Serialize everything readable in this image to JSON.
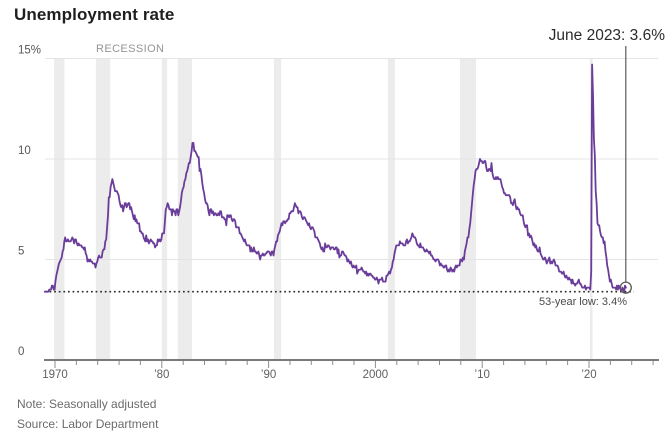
{
  "title": "Unemployment rate",
  "recession_label": "RECESSION",
  "annotations": {
    "latest": "June 2023: 3.6%",
    "low": "53-year low: 3.4%"
  },
  "note": "Note: Seasonally adjusted",
  "source": "Source: Labor Department",
  "colors": {
    "line": "#6a3d9a",
    "recession_band": "#ececec",
    "grid": "#e4e4e4",
    "axis": "#7a7a7a",
    "tick": "#8c8c8c",
    "tick_label": "#5f5f5f",
    "y_label": "#575757",
    "dotted_line": "#2a2a2a",
    "annotation_line": "#5a5a5a"
  },
  "chart_data": {
    "type": "line",
    "title": "Unemployment rate",
    "unit": "%",
    "frequency": "monthly",
    "start_year": 1969,
    "end_label": "June 2023",
    "ylim": [
      0,
      15
    ],
    "xlim": [
      1969,
      2026.5
    ],
    "grid": "horizontal",
    "y_ticks": [
      {
        "value": 15,
        "label": "15%"
      },
      {
        "value": 10,
        "label": "10"
      },
      {
        "value": 5,
        "label": "5"
      },
      {
        "value": 0,
        "label": "0"
      }
    ],
    "x_ticks": [
      {
        "year": 1970,
        "label": "1970"
      },
      {
        "year": 1980,
        "label": "’80"
      },
      {
        "year": 1990,
        "label": "’90"
      },
      {
        "year": 2000,
        "label": "2000"
      },
      {
        "year": 2010,
        "label": "’10"
      },
      {
        "year": 2020,
        "label": "’20"
      }
    ],
    "minor_tick_step_years": 2,
    "minor_tick_range": [
      1970,
      2026
    ],
    "recessions": [
      [
        1969.92,
        1970.88
      ],
      [
        1973.83,
        1975.17
      ],
      [
        1980.0,
        1980.5
      ],
      [
        1981.5,
        1982.83
      ],
      [
        1990.5,
        1991.17
      ],
      [
        2001.17,
        2001.83
      ],
      [
        2007.92,
        2009.42
      ],
      [
        2020.08,
        2020.33
      ]
    ],
    "low_line": {
      "value": 3.4,
      "label": "53-year low: 3.4%"
    },
    "latest_point": {
      "x": 2023.45,
      "value": 3.6,
      "label": "June 2023: 3.6%"
    },
    "values": [
      3.4,
      3.4,
      3.4,
      3.4,
      3.4,
      3.5,
      3.5,
      3.5,
      3.7,
      3.7,
      3.5,
      3.5,
      3.9,
      4.2,
      4.4,
      4.6,
      4.8,
      4.9,
      5.0,
      5.1,
      5.4,
      5.5,
      5.9,
      6.1,
      5.9,
      5.9,
      6.0,
      5.9,
      5.9,
      5.9,
      6.0,
      6.1,
      6.0,
      5.8,
      6.0,
      6.0,
      5.8,
      5.7,
      5.8,
      5.7,
      5.7,
      5.7,
      5.6,
      5.6,
      5.5,
      5.6,
      5.3,
      5.2,
      4.9,
      5.0,
      4.9,
      5.0,
      4.9,
      4.9,
      4.8,
      4.8,
      4.8,
      4.6,
      4.8,
      4.9,
      5.1,
      5.2,
      5.1,
      5.1,
      5.1,
      5.4,
      5.5,
      5.5,
      5.9,
      6.0,
      6.6,
      7.2,
      8.1,
      8.1,
      8.6,
      8.8,
      9.0,
      8.8,
      8.6,
      8.4,
      8.4,
      8.4,
      8.3,
      8.2,
      7.9,
      7.7,
      7.6,
      7.7,
      7.4,
      7.6,
      7.8,
      7.8,
      7.6,
      7.7,
      7.8,
      7.8,
      7.5,
      7.6,
      7.4,
      7.2,
      7.0,
      7.2,
      6.9,
      7.0,
      6.8,
      6.8,
      6.8,
      6.4,
      6.4,
      6.3,
      6.3,
      6.1,
      6.0,
      5.9,
      6.2,
      5.9,
      6.0,
      5.8,
      5.9,
      6.0,
      5.9,
      5.9,
      5.8,
      5.8,
      5.6,
      5.7,
      5.7,
      6.0,
      5.9,
      6.0,
      5.9,
      6.0,
      6.3,
      6.3,
      6.3,
      6.9,
      7.5,
      7.6,
      7.8,
      7.7,
      7.5,
      7.5,
      7.5,
      7.2,
      7.5,
      7.4,
      7.4,
      7.2,
      7.5,
      7.5,
      7.2,
      7.4,
      7.6,
      7.9,
      8.3,
      8.5,
      8.6,
      8.9,
      9.0,
      9.3,
      9.4,
      9.6,
      9.8,
      9.8,
      10.1,
      10.4,
      10.8,
      10.8,
      10.4,
      10.4,
      10.3,
      10.2,
      10.1,
      10.1,
      9.4,
      9.5,
      9.2,
      8.8,
      8.5,
      8.3,
      8.0,
      7.8,
      7.8,
      7.7,
      7.4,
      7.2,
      7.5,
      7.5,
      7.3,
      7.4,
      7.2,
      7.3,
      7.3,
      7.2,
      7.2,
      7.3,
      7.2,
      7.4,
      7.4,
      7.1,
      7.1,
      7.1,
      7.0,
      7.0,
      6.7,
      7.2,
      7.2,
      7.1,
      7.2,
      7.2,
      7.0,
      6.9,
      7.0,
      7.0,
      6.9,
      6.6,
      6.6,
      6.6,
      6.6,
      6.3,
      6.3,
      6.2,
      6.1,
      6.0,
      5.9,
      6.0,
      5.8,
      5.7,
      5.7,
      5.7,
      5.7,
      5.4,
      5.6,
      5.4,
      5.4,
      5.6,
      5.4,
      5.4,
      5.3,
      5.3,
      5.4,
      5.2,
      5.0,
      5.2,
      5.2,
      5.3,
      5.2,
      5.2,
      5.3,
      5.3,
      5.4,
      5.4,
      5.4,
      5.3,
      5.2,
      5.4,
      5.4,
      5.2,
      5.5,
      5.7,
      5.9,
      5.9,
      6.2,
      6.3,
      6.4,
      6.6,
      6.8,
      6.7,
      6.9,
      6.9,
      6.8,
      6.9,
      6.9,
      7.0,
      7.0,
      7.3,
      7.3,
      7.4,
      7.4,
      7.4,
      7.6,
      7.8,
      7.7,
      7.6,
      7.6,
      7.3,
      7.4,
      7.4,
      7.3,
      7.1,
      7.0,
      7.1,
      7.1,
      7.0,
      6.9,
      6.8,
      6.7,
      6.8,
      6.6,
      6.5,
      6.6,
      6.6,
      6.5,
      6.4,
      6.1,
      6.1,
      6.1,
      6.0,
      5.9,
      5.8,
      5.6,
      5.5,
      5.6,
      5.4,
      5.4,
      5.8,
      5.6,
      5.6,
      5.7,
      5.7,
      5.6,
      5.5,
      5.6,
      5.6,
      5.6,
      5.5,
      5.5,
      5.6,
      5.6,
      5.3,
      5.5,
      5.1,
      5.2,
      5.2,
      5.4,
      5.4,
      5.3,
      5.2,
      5.2,
      5.1,
      4.9,
      5.0,
      4.9,
      4.8,
      4.9,
      4.7,
      4.6,
      4.7,
      4.6,
      4.6,
      4.7,
      4.3,
      4.4,
      4.5,
      4.5,
      4.5,
      4.6,
      4.5,
      4.4,
      4.4,
      4.3,
      4.4,
      4.2,
      4.3,
      4.2,
      4.3,
      4.3,
      4.2,
      4.2,
      4.1,
      4.1,
      4.0,
      4.0,
      4.1,
      4.0,
      3.8,
      4.0,
      4.0,
      4.0,
      4.1,
      3.9,
      3.9,
      3.9,
      3.9,
      4.2,
      4.2,
      4.3,
      4.4,
      4.3,
      4.5,
      4.6,
      4.9,
      5.0,
      5.3,
      5.5,
      5.7,
      5.7,
      5.7,
      5.7,
      5.9,
      5.8,
      5.8,
      5.8,
      5.7,
      5.7,
      5.7,
      5.9,
      6.0,
      5.8,
      5.9,
      5.9,
      6.0,
      6.1,
      6.3,
      6.2,
      6.1,
      6.1,
      6.0,
      5.8,
      5.7,
      5.7,
      5.6,
      5.8,
      5.6,
      5.6,
      5.6,
      5.5,
      5.4,
      5.4,
      5.5,
      5.4,
      5.4,
      5.3,
      5.4,
      5.2,
      5.2,
      5.1,
      5.0,
      5.0,
      4.9,
      5.0,
      5.0,
      5.0,
      4.9,
      4.7,
      4.8,
      4.7,
      4.7,
      4.6,
      4.6,
      4.7,
      4.7,
      4.5,
      4.4,
      4.5,
      4.4,
      4.6,
      4.5,
      4.4,
      4.5,
      4.4,
      4.6,
      4.7,
      4.6,
      4.7,
      4.7,
      4.7,
      5.0,
      5.0,
      4.9,
      5.1,
      5.0,
      5.4,
      5.6,
      5.8,
      6.1,
      6.1,
      6.5,
      6.8,
      7.3,
      7.8,
      8.3,
      8.7,
      9.0,
      9.4,
      9.5,
      9.5,
      9.6,
      9.8,
      10.0,
      9.9,
      9.9,
      9.8,
      9.8,
      9.9,
      9.9,
      9.6,
      9.4,
      9.4,
      9.5,
      9.5,
      9.4,
      9.8,
      9.3,
      9.1,
      9.0,
      9.0,
      9.1,
      9.0,
      9.1,
      9.0,
      9.0,
      9.0,
      8.8,
      8.6,
      8.5,
      8.3,
      8.3,
      8.2,
      8.2,
      8.2,
      8.2,
      8.2,
      8.1,
      7.8,
      7.8,
      7.7,
      7.9,
      8.0,
      7.7,
      7.5,
      7.6,
      7.5,
      7.5,
      7.3,
      7.2,
      7.2,
      7.2,
      6.9,
      6.7,
      6.6,
      6.7,
      6.7,
      6.2,
      6.3,
      6.1,
      6.2,
      6.1,
      5.9,
      5.7,
      5.8,
      5.6,
      5.7,
      5.5,
      5.4,
      5.4,
      5.6,
      5.3,
      5.2,
      5.1,
      5.0,
      5.0,
      5.1,
      5.0,
      4.8,
      4.9,
      5.0,
      5.1,
      4.8,
      4.9,
      4.8,
      4.9,
      5.0,
      4.9,
      4.7,
      4.7,
      4.7,
      4.6,
      4.4,
      4.4,
      4.4,
      4.3,
      4.3,
      4.4,
      4.2,
      4.1,
      4.2,
      4.1,
      4.0,
      4.1,
      4.0,
      4.0,
      3.8,
      4.0,
      3.8,
      3.8,
      3.7,
      3.8,
      3.8,
      3.9,
      4.0,
      3.8,
      3.8,
      3.7,
      3.6,
      3.6,
      3.6,
      3.7,
      3.5,
      3.6,
      3.6,
      3.6,
      3.6,
      3.5,
      4.4,
      14.7,
      13.2,
      11.0,
      10.2,
      8.4,
      7.8,
      6.8,
      6.7,
      6.7,
      6.4,
      6.2,
      6.1,
      6.1,
      5.8,
      5.9,
      5.4,
      5.1,
      4.7,
      4.5,
      4.2,
      3.9,
      4.0,
      3.8,
      3.6,
      3.6,
      3.6,
      3.6,
      3.5,
      3.7,
      3.5,
      3.7,
      3.6,
      3.5,
      3.4,
      3.6,
      3.5,
      3.4,
      3.7,
      3.6
    ]
  }
}
